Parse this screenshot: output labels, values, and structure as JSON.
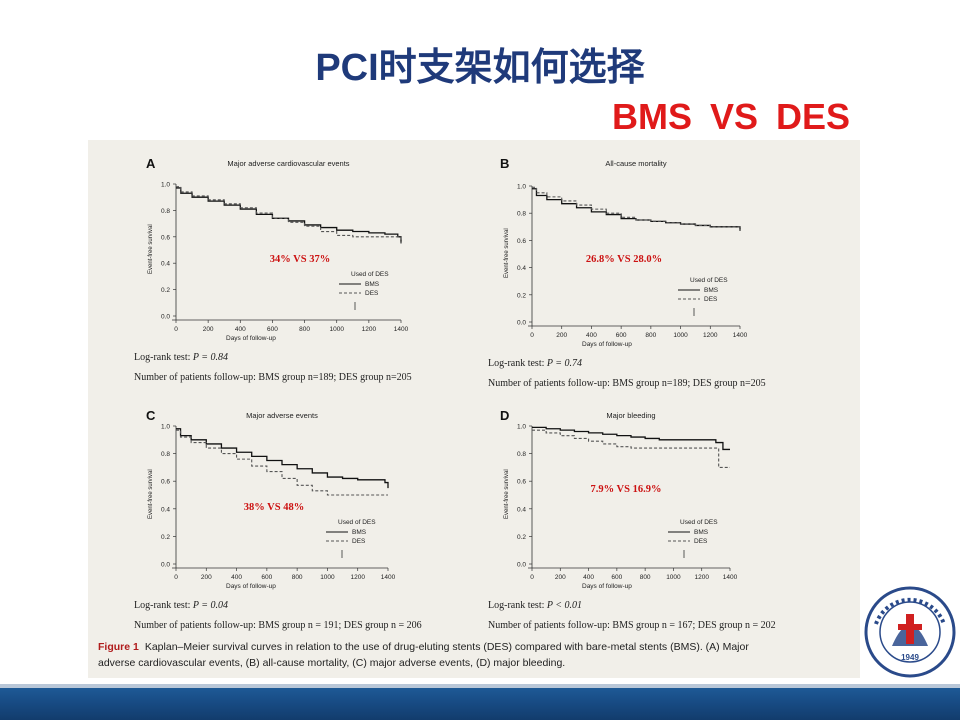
{
  "slide": {
    "title": "PCI时支架如何选择",
    "subtitle": "BMS  VS  DES",
    "colors": {
      "title": "#1f3a7a",
      "subtitle": "#e01a1a",
      "annotation": "#cc1111",
      "band": "#1a4f88"
    }
  },
  "logo": {
    "icon": "university-seal-icon",
    "year": "1949"
  },
  "figure": {
    "caption_bold": "Figure 1",
    "caption_line1": "Kaplan–Meier survival curves in relation to the use of drug-eluting stents (DES) compared with bare-metal stents (BMS). (A) Major",
    "caption_line2": "adverse cardiovascular events, (B) all-cause mortality, (C) major adverse events, (D) major bleeding."
  },
  "chart_data": [
    {
      "type": "line",
      "panel": "A",
      "title": "Major adverse cardiovascular events",
      "xlabel": "Days of follow-up",
      "ylabel": "Event-free survival",
      "xlim": [
        0,
        1400
      ],
      "ylim": [
        0,
        1.0
      ],
      "xticks": [
        "0",
        "200",
        "400",
        "600",
        "800",
        "1000",
        "1200",
        "1400"
      ],
      "yticks": [
        "0.0",
        "0.2",
        "0.4",
        "0.6",
        "0.8",
        "1.0"
      ],
      "legend": {
        "title": "Used of DES",
        "placement": "lower-right",
        "entries": [
          "BMS",
          "DES"
        ]
      },
      "annotation": "34% VS 37%",
      "logrank": "Log-rank test: ",
      "p_value": "P = 0.84",
      "patients": "Number of patients follow-up: BMS group n=189; DES group n=205",
      "series": [
        {
          "name": "BMS",
          "dash": "solid",
          "x": [
            0,
            30,
            100,
            200,
            300,
            400,
            500,
            600,
            700,
            800,
            900,
            1000,
            1100,
            1200,
            1300,
            1380,
            1400
          ],
          "y": [
            0.97,
            0.93,
            0.9,
            0.87,
            0.84,
            0.81,
            0.77,
            0.74,
            0.72,
            0.69,
            0.67,
            0.65,
            0.64,
            0.63,
            0.62,
            0.6,
            0.55
          ]
        },
        {
          "name": "DES",
          "dash": "dashed",
          "x": [
            0,
            30,
            100,
            200,
            300,
            400,
            500,
            600,
            700,
            800,
            900,
            1000,
            1100,
            1200,
            1300,
            1380,
            1400
          ],
          "y": [
            0.98,
            0.94,
            0.91,
            0.88,
            0.85,
            0.82,
            0.78,
            0.74,
            0.71,
            0.68,
            0.64,
            0.61,
            0.6,
            0.6,
            0.6,
            0.6,
            0.55
          ]
        }
      ]
    },
    {
      "type": "line",
      "panel": "B",
      "title": "All-cause mortality",
      "xlabel": "Days of follow-up",
      "ylabel": "Event-free survival",
      "xlim": [
        0,
        1400
      ],
      "ylim": [
        0,
        1.0
      ],
      "xticks": [
        "0",
        "200",
        "400",
        "600",
        "800",
        "1000",
        "1200",
        "1400"
      ],
      "yticks": [
        "0.0",
        "0.2",
        "0.4",
        "0.6",
        "0.8",
        "1.0"
      ],
      "legend": {
        "title": "Used of DES",
        "placement": "lower-right",
        "entries": [
          "BMS",
          "DES"
        ]
      },
      "annotation": "26.8% VS 28.0%",
      "logrank": "Log-rank test: ",
      "p_value": "P = 0.74",
      "patients": "Number of patients follow-up: BMS group n=189; DES group n=205",
      "series": [
        {
          "name": "BMS",
          "dash": "solid",
          "x": [
            0,
            30,
            100,
            200,
            300,
            400,
            500,
            600,
            700,
            800,
            900,
            1000,
            1100,
            1200,
            1300,
            1400
          ],
          "y": [
            0.98,
            0.93,
            0.9,
            0.87,
            0.84,
            0.81,
            0.79,
            0.76,
            0.75,
            0.74,
            0.73,
            0.72,
            0.71,
            0.7,
            0.7,
            0.67
          ]
        },
        {
          "name": "DES",
          "dash": "dashed",
          "x": [
            0,
            30,
            100,
            200,
            300,
            400,
            500,
            600,
            700,
            800,
            900,
            1000,
            1100,
            1200,
            1300,
            1400
          ],
          "y": [
            0.99,
            0.95,
            0.92,
            0.89,
            0.86,
            0.83,
            0.8,
            0.77,
            0.75,
            0.74,
            0.73,
            0.72,
            0.71,
            0.7,
            0.7,
            0.67
          ]
        }
      ]
    },
    {
      "type": "line",
      "panel": "C",
      "title": "Major adverse events",
      "xlabel": "Days of follow-up",
      "ylabel": "Event-free survival",
      "xlim": [
        0,
        1400
      ],
      "ylim": [
        0,
        1.0
      ],
      "xticks": [
        "0",
        "200",
        "400",
        "600",
        "800",
        "1000",
        "1200",
        "1400"
      ],
      "yticks": [
        "0.0",
        "0.2",
        "0.4",
        "0.6",
        "0.8",
        "1.0"
      ],
      "legend": {
        "title": "Used of DES",
        "placement": "lower-right",
        "entries": [
          "BMS",
          "DES"
        ]
      },
      "annotation": "38% VS 48%",
      "logrank": "Log-rank test: ",
      "p_value": "P = 0.04",
      "patients": "Number of patients follow-up: BMS group n = 191; DES group n = 206",
      "series": [
        {
          "name": "BMS",
          "dash": "solid",
          "x": [
            0,
            30,
            100,
            200,
            300,
            400,
            500,
            600,
            700,
            800,
            900,
            1000,
            1100,
            1200,
            1300,
            1380,
            1400
          ],
          "y": [
            0.98,
            0.93,
            0.9,
            0.87,
            0.84,
            0.81,
            0.78,
            0.75,
            0.72,
            0.69,
            0.66,
            0.63,
            0.62,
            0.61,
            0.61,
            0.59,
            0.55
          ]
        },
        {
          "name": "DES",
          "dash": "dashed",
          "x": [
            0,
            30,
            100,
            200,
            300,
            400,
            500,
            600,
            700,
            800,
            900,
            1000,
            1100,
            1200,
            1300,
            1400
          ],
          "y": [
            0.97,
            0.92,
            0.88,
            0.84,
            0.8,
            0.76,
            0.71,
            0.67,
            0.62,
            0.57,
            0.53,
            0.5,
            0.5,
            0.5,
            0.5,
            0.5
          ]
        }
      ]
    },
    {
      "type": "line",
      "panel": "D",
      "title": "Major bleeding",
      "xlabel": "Days of follow-up",
      "ylabel": "Event-free survival",
      "xlim": [
        0,
        1400
      ],
      "ylim": [
        0,
        1.0
      ],
      "xticks": [
        "0",
        "200",
        "400",
        "600",
        "800",
        "1000",
        "1200",
        "1400"
      ],
      "yticks": [
        "0.0",
        "0.2",
        "0.4",
        "0.6",
        "0.8",
        "1.0"
      ],
      "legend": {
        "title": "Used of DES",
        "placement": "lower-right",
        "entries": [
          "BMS",
          "DES"
        ]
      },
      "annotation": "7.9% VS 16.9%",
      "logrank": "Log-rank test: ",
      "p_value": "P < 0.01",
      "patients": "Number of patients follow-up: BMS group n = 167; DES group n = 202",
      "series": [
        {
          "name": "BMS",
          "dash": "solid",
          "x": [
            0,
            100,
            200,
            300,
            400,
            500,
            600,
            700,
            800,
            900,
            1000,
            1100,
            1200,
            1300,
            1350,
            1400
          ],
          "y": [
            0.99,
            0.98,
            0.97,
            0.96,
            0.95,
            0.94,
            0.93,
            0.92,
            0.91,
            0.9,
            0.9,
            0.9,
            0.9,
            0.88,
            0.83,
            0.83
          ]
        },
        {
          "name": "DES",
          "dash": "dashed",
          "x": [
            0,
            100,
            200,
            300,
            400,
            500,
            600,
            700,
            800,
            900,
            1000,
            1100,
            1200,
            1300,
            1320,
            1400
          ],
          "y": [
            0.97,
            0.95,
            0.93,
            0.91,
            0.89,
            0.87,
            0.85,
            0.84,
            0.84,
            0.84,
            0.84,
            0.84,
            0.84,
            0.84,
            0.7,
            0.7
          ]
        }
      ]
    }
  ]
}
